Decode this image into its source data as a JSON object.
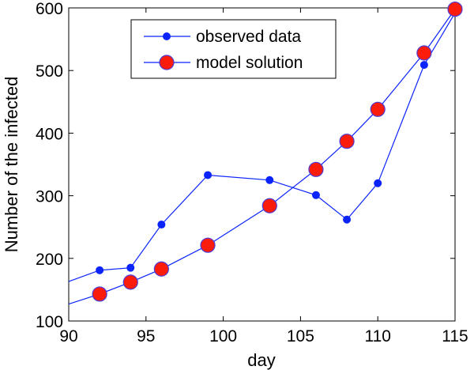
{
  "chart_data": {
    "type": "line",
    "xlabel": "day",
    "ylabel": "Number of the infected",
    "xlim": [
      90,
      115
    ],
    "ylim": [
      100,
      600
    ],
    "xticks": [
      90,
      95,
      100,
      105,
      110,
      115
    ],
    "yticks": [
      100,
      200,
      300,
      400,
      500,
      600
    ],
    "grid": false,
    "legend_position": "top-center",
    "series": [
      {
        "name": "observed data",
        "color": "#0b24fb",
        "marker": "small-dot",
        "x": [
          90,
          92,
          94,
          96,
          99,
          103,
          106,
          108,
          110,
          113,
          115
        ],
        "y": [
          163,
          181,
          185,
          254,
          333,
          325,
          301,
          262,
          320,
          509,
          592
        ]
      },
      {
        "name": "model solution",
        "color": "#0b24fb",
        "marker_fill": "#fc1c0c",
        "marker": "large-circle",
        "x": [
          90,
          92,
          94,
          96,
          99,
          103,
          106,
          108,
          110,
          113,
          115
        ],
        "y": [
          127,
          143,
          162,
          183,
          221,
          284,
          342,
          387,
          438,
          528,
          598
        ]
      }
    ]
  }
}
